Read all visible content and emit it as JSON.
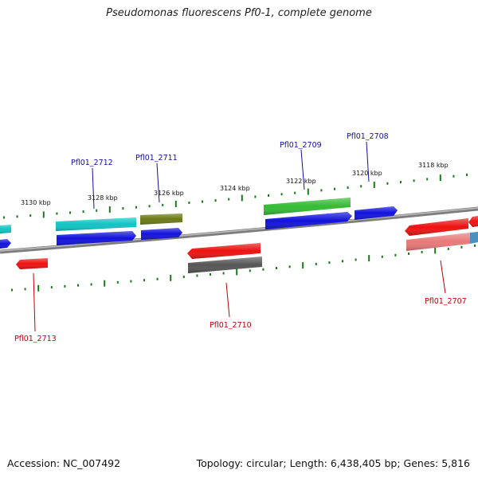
{
  "title": "Pseudomonas fluorescens Pf0-1, complete genome",
  "accession": "Accession: NC_007492",
  "summary": "Topology: circular; Length: 6,438,405 bp; Genes: 5,816",
  "colors": {
    "backbone": "#8a8a8a",
    "tick": "#1a7a1a",
    "label_top": "#1010a0",
    "label_bottom": "#c00000",
    "red": "#ee1111",
    "blue": "#1111dd",
    "cyan": "#11c4c4",
    "olive": "#6b7a14",
    "green": "#33bb33",
    "gray": "#555555",
    "pink": "#e87878",
    "steel": "#4a90c0"
  },
  "scale_labels": [
    "3130 kbp",
    "3128 kbp",
    "3126 kbp",
    "3124 kbp",
    "3122 kbp",
    "3120 kbp",
    "3118 kbp"
  ],
  "gene_labels": {
    "top": [
      "Pfl01_2712",
      "Pfl01_2711",
      "Pfl01_2709",
      "Pfl01_2708"
    ],
    "bottom": [
      "Pfl01_2713",
      "Pfl01_2710",
      "Pfl01_2707"
    ]
  }
}
